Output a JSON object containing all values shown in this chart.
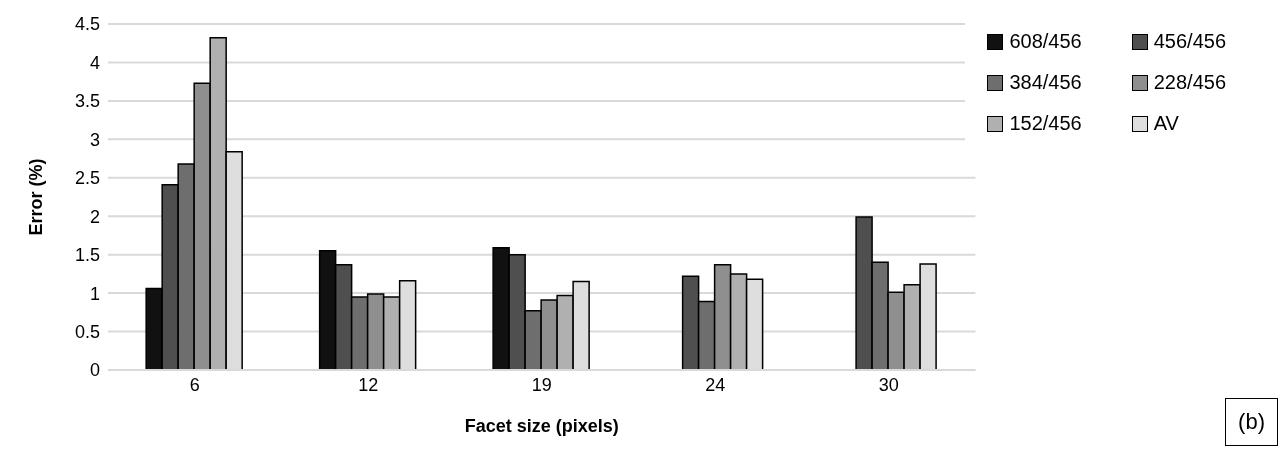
{
  "chart_data": {
    "type": "bar",
    "xlabel": "Facet size (pixels)",
    "ylabel": "Error (%)",
    "categories": [
      "6",
      "12",
      "19",
      "24",
      "30"
    ],
    "series": [
      {
        "name": "608/456",
        "color": "#111111",
        "values": [
          1.06,
          1.55,
          1.59,
          null,
          null
        ]
      },
      {
        "name": "456/456",
        "color": "#4f4f4f",
        "values": [
          2.41,
          1.37,
          1.5,
          1.22,
          1.99
        ]
      },
      {
        "name": "384/456",
        "color": "#6e6e6e",
        "values": [
          2.68,
          0.95,
          0.77,
          0.89,
          1.4
        ]
      },
      {
        "name": "228/456",
        "color": "#8f8f8f",
        "values": [
          3.73,
          0.99,
          0.91,
          1.37,
          1.01
        ]
      },
      {
        "name": "152/456",
        "color": "#b0b0b0",
        "values": [
          4.32,
          0.95,
          0.97,
          1.25,
          1.11
        ]
      },
      {
        "name": "AV",
        "color": "#dedede",
        "values": [
          2.84,
          1.16,
          1.15,
          1.18,
          1.38
        ]
      }
    ],
    "ylim": [
      0,
      4.5
    ],
    "yticks": [
      0,
      0.5,
      1,
      1.5,
      2,
      2.5,
      3,
      3.5,
      4,
      4.5
    ],
    "grid": "y",
    "legend": "top right",
    "annotations": [
      "(b)"
    ]
  }
}
